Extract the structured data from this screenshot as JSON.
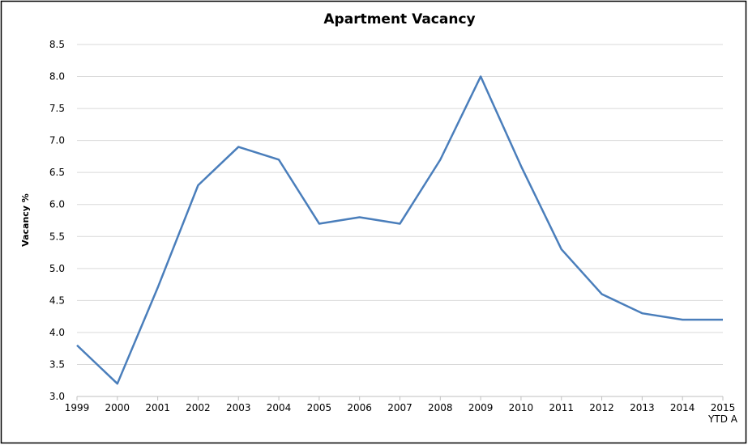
{
  "chart_data": {
    "type": "line",
    "title": "Apartment Vacancy",
    "y_label": "Vacancy %",
    "categories": [
      "1999",
      "2000",
      "2001",
      "2002",
      "2003",
      "2004",
      "2005",
      "2006",
      "2007",
      "2008",
      "2009",
      "2010",
      "2011",
      "2012",
      "2013",
      "2014",
      "2015\nYTD A"
    ],
    "series": [
      {
        "name": "Vacancy %",
        "color": "#4a7ebb",
        "values": [
          3.8,
          3.2,
          4.7,
          6.3,
          6.9,
          6.7,
          5.7,
          5.8,
          5.7,
          6.7,
          8.0,
          6.6,
          5.3,
          4.6,
          4.3,
          4.2,
          4.2
        ]
      }
    ],
    "ylim": [
      3.0,
      8.5
    ],
    "yticks": [
      {
        "value": 3.0,
        "label": "3.0"
      },
      {
        "value": 3.5,
        "label": "3.5"
      },
      {
        "value": 4.0,
        "label": "4.0"
      },
      {
        "value": 4.5,
        "label": "4.5"
      },
      {
        "value": 5.0,
        "label": "5.0"
      },
      {
        "value": 5.5,
        "label": "5.5"
      },
      {
        "value": 6.0,
        "label": "6.0"
      },
      {
        "value": 6.5,
        "label": "6.5"
      },
      {
        "value": 7.0,
        "label": "7.0"
      },
      {
        "value": 7.5,
        "label": "7.5"
      },
      {
        "value": 8.0,
        "label": "8.0"
      },
      {
        "value": 8.5,
        "label": "8.5"
      }
    ],
    "grid": true
  }
}
